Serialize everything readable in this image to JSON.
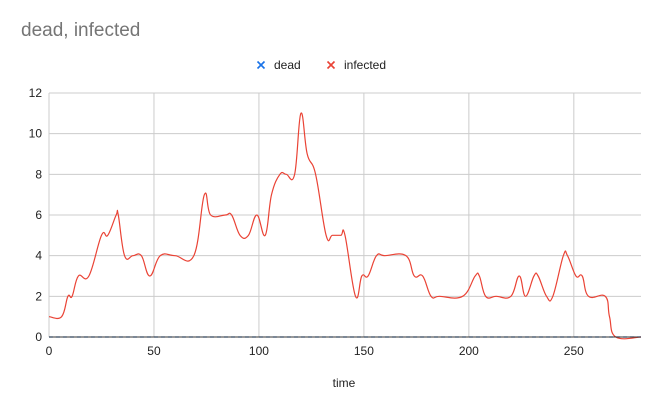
{
  "chart_data": {
    "type": "line",
    "title": "dead, infected",
    "xlabel": "time",
    "ylabel": "",
    "xlim": [
      0,
      282
    ],
    "ylim": [
      0,
      12
    ],
    "xticks": [
      0,
      50,
      100,
      150,
      200,
      250
    ],
    "yticks": [
      0,
      2,
      4,
      6,
      8,
      10,
      12
    ],
    "grid": true,
    "legend_position": "top-center",
    "series": [
      {
        "name": "dead",
        "color": "#1a73e8",
        "marker": "x",
        "points": [
          [
            0,
            0
          ],
          [
            282,
            0
          ]
        ]
      },
      {
        "name": "infected",
        "color": "#ea4335",
        "marker": "x",
        "points": [
          [
            0,
            1
          ],
          [
            6,
            1
          ],
          [
            9,
            2
          ],
          [
            11,
            2
          ],
          [
            14,
            3
          ],
          [
            19,
            3
          ],
          [
            25,
            5
          ],
          [
            28,
            5
          ],
          [
            32,
            6
          ],
          [
            33,
            6
          ],
          [
            36,
            4
          ],
          [
            40,
            4
          ],
          [
            44,
            4
          ],
          [
            48,
            3
          ],
          [
            53,
            4
          ],
          [
            60,
            4
          ],
          [
            69,
            4
          ],
          [
            74,
            7
          ],
          [
            77,
            6
          ],
          [
            84,
            6
          ],
          [
            87,
            6
          ],
          [
            91,
            5
          ],
          [
            95,
            5
          ],
          [
            99,
            6
          ],
          [
            103,
            5
          ],
          [
            106,
            7
          ],
          [
            110,
            8
          ],
          [
            113,
            8
          ],
          [
            117,
            8
          ],
          [
            120,
            11
          ],
          [
            123,
            9
          ],
          [
            127,
            8
          ],
          [
            132,
            5
          ],
          [
            135,
            5
          ],
          [
            139,
            5
          ],
          [
            141,
            5
          ],
          [
            146,
            2
          ],
          [
            149,
            3
          ],
          [
            152,
            3
          ],
          [
            156,
            4
          ],
          [
            160,
            4
          ],
          [
            170,
            4
          ],
          [
            174,
            3
          ],
          [
            178,
            3
          ],
          [
            182,
            2
          ],
          [
            186,
            2
          ],
          [
            197,
            2
          ],
          [
            203,
            3
          ],
          [
            205,
            3
          ],
          [
            208,
            2
          ],
          [
            213,
            2
          ],
          [
            220,
            2
          ],
          [
            224,
            3
          ],
          [
            227,
            2
          ],
          [
            231,
            3
          ],
          [
            233,
            3
          ],
          [
            237,
            2
          ],
          [
            240,
            2
          ],
          [
            245,
            4
          ],
          [
            247,
            4
          ],
          [
            251,
            3
          ],
          [
            254,
            3
          ],
          [
            257,
            2
          ],
          [
            265,
            2
          ],
          [
            267,
            1
          ],
          [
            270,
            0
          ],
          [
            282,
            0
          ]
        ]
      }
    ]
  }
}
